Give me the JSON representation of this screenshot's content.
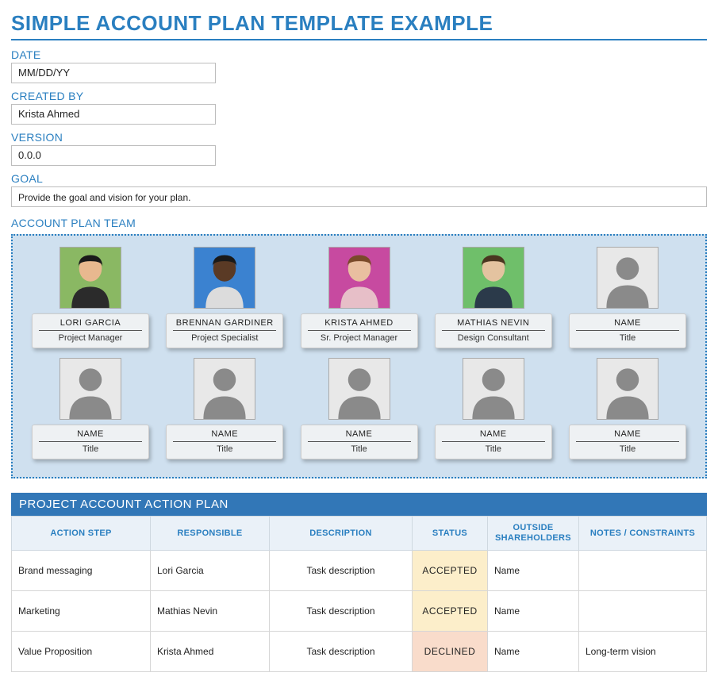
{
  "title": "SIMPLE ACCOUNT PLAN TEMPLATE EXAMPLE",
  "fields": {
    "date_label": "DATE",
    "date_value": "MM/DD/YY",
    "created_label": "CREATED BY",
    "created_value": "Krista Ahmed",
    "version_label": "VERSION",
    "version_value": "0.0.0",
    "goal_label": "GOAL",
    "goal_value": "Provide the goal and vision for your plan."
  },
  "team": {
    "heading": "ACCOUNT PLAN TEAM",
    "members": [
      {
        "name": "LORI GARCIA",
        "title": "Project Manager",
        "bg": "#8ab863",
        "placeholder": false,
        "skin": "#e8b88f",
        "hair": "#1a1a1a",
        "shirt": "#2b2b2b"
      },
      {
        "name": "BRENNAN GARDINER",
        "title": "Project Specialist",
        "bg": "#3b82d0",
        "placeholder": false,
        "skin": "#5a3a25",
        "hair": "#1a1a1a",
        "shirt": "#dcdcdc"
      },
      {
        "name": "KRISTA AHMED",
        "title": "Sr. Project Manager",
        "bg": "#c74aa0",
        "placeholder": false,
        "skin": "#e9bfa0",
        "hair": "#7a4a2a",
        "shirt": "#e7bfc8"
      },
      {
        "name": "MATHIAS NEVIN",
        "title": "Design Consultant",
        "bg": "#6fbf6a",
        "placeholder": false,
        "skin": "#e4c3a0",
        "hair": "#4a3620",
        "shirt": "#2b3a4a"
      },
      {
        "name": "NAME",
        "title": "Title",
        "bg": "#e8e8e8",
        "placeholder": true
      },
      {
        "name": "NAME",
        "title": "Title",
        "bg": "#e8e8e8",
        "placeholder": true
      },
      {
        "name": "NAME",
        "title": "Title",
        "bg": "#e8e8e8",
        "placeholder": true
      },
      {
        "name": "NAME",
        "title": "Title",
        "bg": "#e8e8e8",
        "placeholder": true
      },
      {
        "name": "NAME",
        "title": "Title",
        "bg": "#e8e8e8",
        "placeholder": true
      },
      {
        "name": "NAME",
        "title": "Title",
        "bg": "#e8e8e8",
        "placeholder": true
      }
    ]
  },
  "action_plan": {
    "heading": "PROJECT ACCOUNT ACTION PLAN",
    "columns": [
      "ACTION STEP",
      "RESPONSIBLE",
      "DESCRIPTION",
      "STATUS",
      "OUTSIDE SHAREHOLDERS",
      "NOTES / CONSTRAINTS"
    ],
    "rows": [
      {
        "step": "Brand messaging",
        "responsible": "Lori Garcia",
        "description": "Task description",
        "status": "ACCEPTED",
        "status_class": "st-accepted",
        "shareholders": "Name",
        "notes": ""
      },
      {
        "step": "Marketing",
        "responsible": "Mathias Nevin",
        "description": "Task description",
        "status": "ACCEPTED",
        "status_class": "st-accepted",
        "shareholders": "Name",
        "notes": ""
      },
      {
        "step": "Value Proposition",
        "responsible": "Krista Ahmed",
        "description": "Task description",
        "status": "DECLINED",
        "status_class": "st-declined",
        "shareholders": "Name",
        "notes": "Long-term vision"
      }
    ]
  },
  "colors": {
    "brand_blue": "#2a7fc0",
    "header_blue": "#3277b7",
    "panel_bg": "#cfe0ef",
    "th_bg": "#eaf1f8",
    "accepted_bg": "#fceeca",
    "declined_bg": "#f9dccb"
  }
}
